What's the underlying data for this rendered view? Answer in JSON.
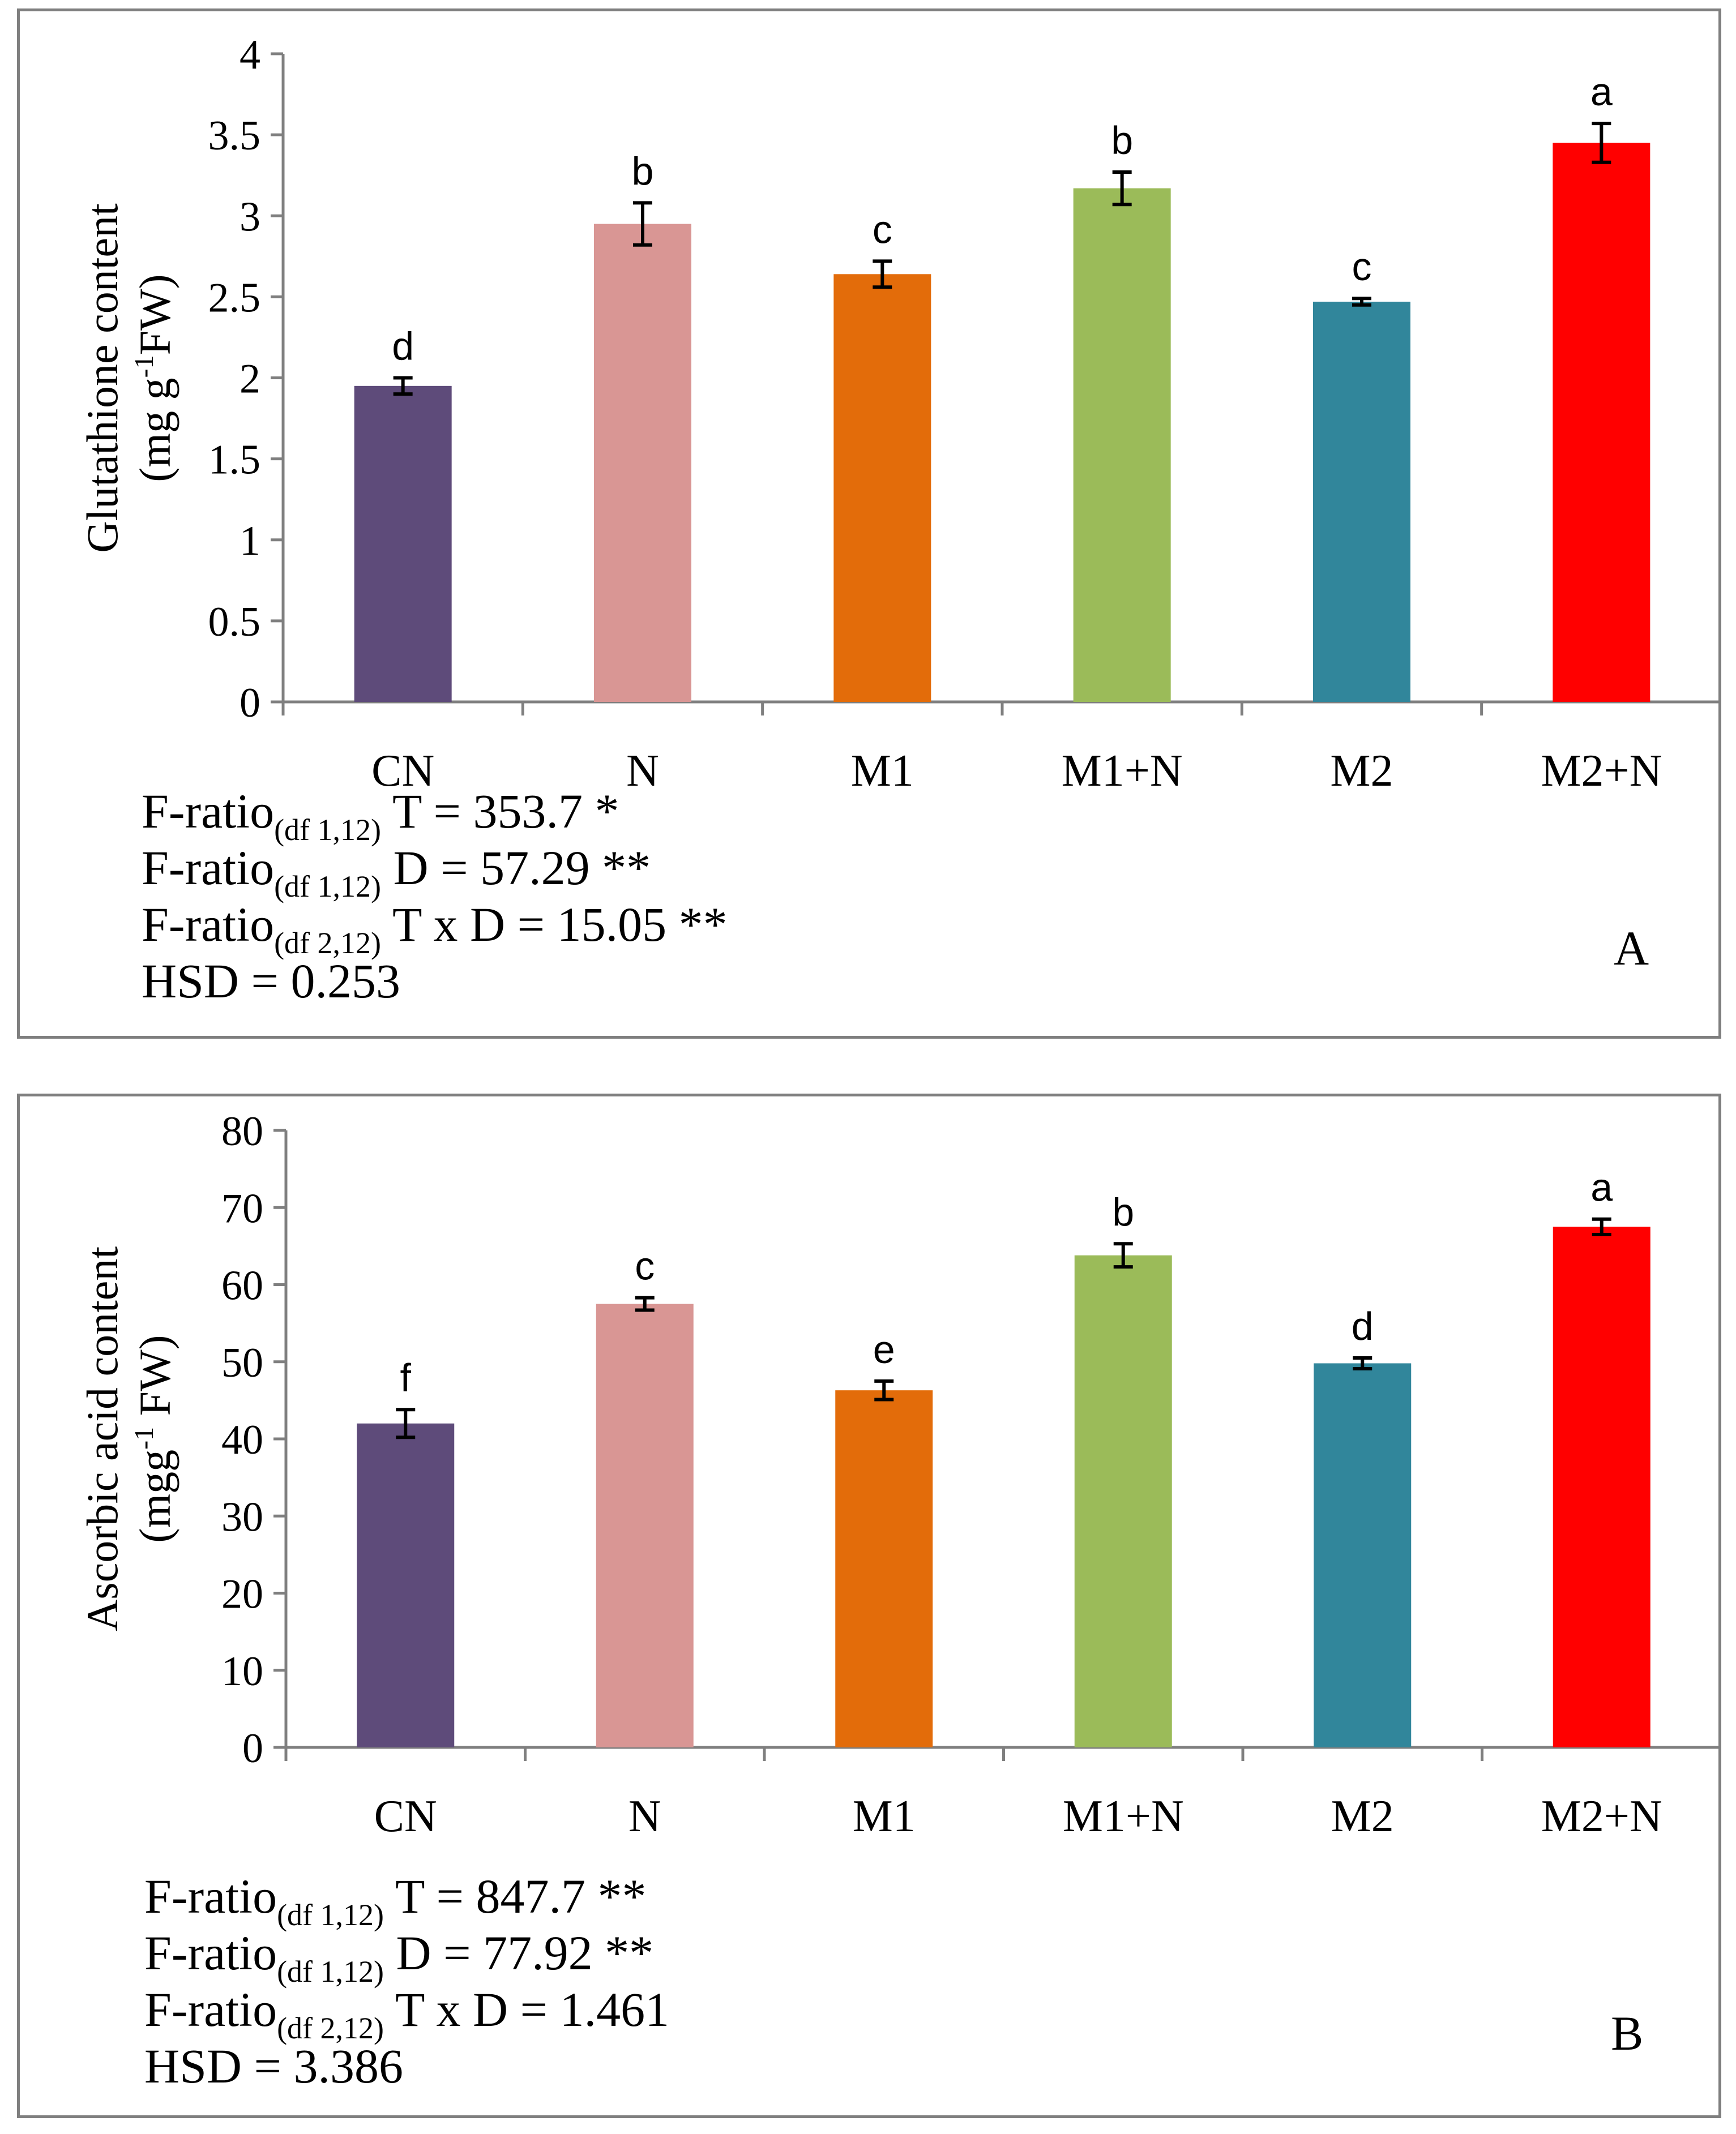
{
  "chart_data": [
    {
      "type": "bar",
      "panel_label": "A",
      "categories": [
        "CN",
        "N",
        "M1",
        "M1+N",
        "M2",
        "M2+N"
      ],
      "values": [
        1.95,
        2.95,
        2.64,
        3.17,
        2.47,
        3.45
      ],
      "errors": [
        0.05,
        0.13,
        0.08,
        0.1,
        0.02,
        0.12
      ],
      "letters": [
        "d",
        "b",
        "c",
        "b",
        "c",
        "a"
      ],
      "colors": [
        "#5e4b7a",
        "#d99694",
        "#e36c0a",
        "#9bbb59",
        "#31869b",
        "#ff0000"
      ],
      "ylim": [
        0,
        4
      ],
      "yticks": [
        0,
        0.5,
        1,
        1.5,
        2,
        2.5,
        3,
        3.5,
        4
      ],
      "ylabel_line1": "Glutathione content",
      "ylabel_line2_pre": "(mg g",
      "ylabel_line2_sup": "-1",
      "ylabel_line2_post": "FW)",
      "stats": [
        {
          "pre": "F-ratio",
          "sub": "(df 1,12)",
          "post": " T =  353.7 *"
        },
        {
          "pre": "F-ratio",
          "sub": "(df 1,12)",
          "post": "  D = 57.29 **"
        },
        {
          "pre": "F-ratio",
          "sub": "(df 2,12)",
          "post": " T x D = 15.05 **"
        },
        {
          "pre": "HSD = 0.253",
          "sub": "",
          "post": ""
        }
      ]
    },
    {
      "type": "bar",
      "panel_label": "B",
      "categories": [
        "CN",
        "N",
        "M1",
        "M1+N",
        "M2",
        "M2+N"
      ],
      "values": [
        42.0,
        57.5,
        46.3,
        63.8,
        49.8,
        67.5
      ],
      "errors": [
        1.8,
        0.8,
        1.2,
        1.5,
        0.7,
        1.0
      ],
      "letters": [
        "f",
        "c",
        "e",
        "b",
        "d",
        "a"
      ],
      "colors": [
        "#5e4b7a",
        "#d99694",
        "#e36c0a",
        "#9bbb59",
        "#31869b",
        "#ff0000"
      ],
      "ylim": [
        0,
        80
      ],
      "yticks": [
        0,
        10,
        20,
        30,
        40,
        50,
        60,
        70,
        80
      ],
      "ylabel_line1": "Ascorbic acid content",
      "ylabel_line2_pre": "(mgg",
      "ylabel_line2_sup": "-1",
      "ylabel_line2_post": " FW)",
      "stats": [
        {
          "pre": "F-ratio",
          "sub": "(df 1,12)",
          "post": " T = 847.7 **"
        },
        {
          "pre": "F-ratio",
          "sub": "(df 1,12)",
          "post": "  D = 77.92 **"
        },
        {
          "pre": "F-ratio",
          "sub": "(df 2,12)",
          "post": " T x D = 1.461"
        },
        {
          "pre": "HSD = 3.386",
          "sub": "",
          "post": ""
        }
      ]
    }
  ]
}
